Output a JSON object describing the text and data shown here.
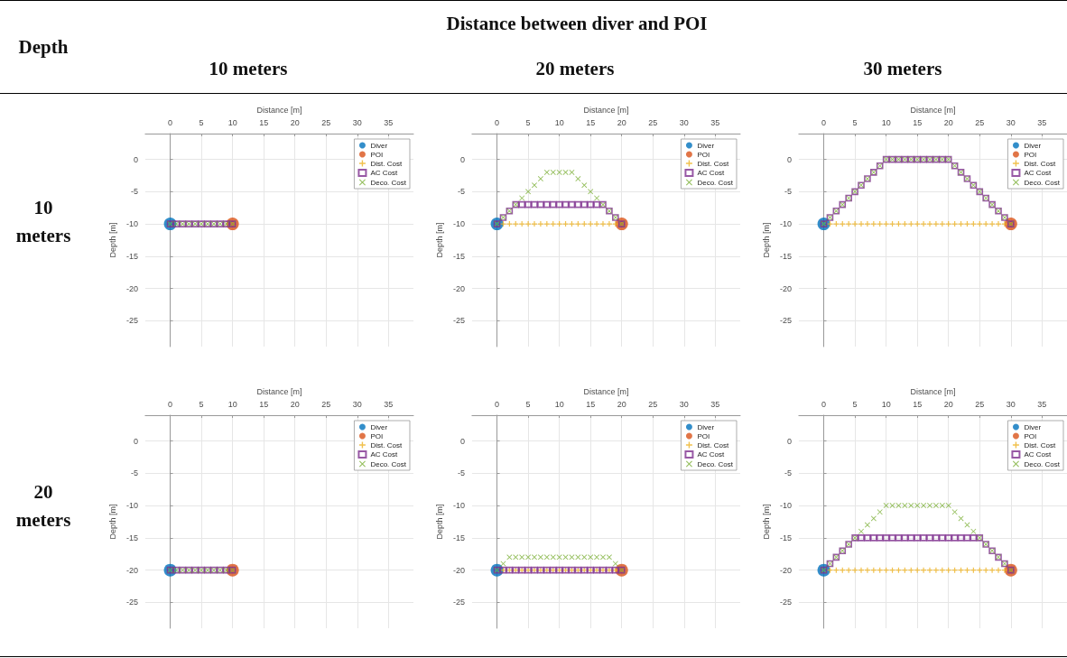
{
  "chart_data": [
    {
      "type": "other",
      "annotations": [
        "Depth",
        "Distance between diver and POI",
        "10 meters",
        "20 meters",
        "30 meters",
        "10 meters",
        "20 meters"
      ]
    },
    {
      "type": "scatter",
      "xlabel": "Distance [m]",
      "ylabel": "Depth [m]",
      "xlim": [
        -4,
        39
      ],
      "ylim": [
        -29,
        4
      ],
      "xticks": [
        0,
        5,
        10,
        15,
        20,
        25,
        30,
        35
      ],
      "yticks": [
        -25,
        -20,
        -15,
        -10,
        -5,
        0
      ],
      "grid": true,
      "legend": "top right",
      "series": [
        {
          "name": "Diver",
          "color": "#0072bd",
          "marker": "circle",
          "x": [
            0
          ],
          "values": [
            -10
          ]
        },
        {
          "name": "POI",
          "color": "#d95319",
          "marker": "circle",
          "x": [
            10
          ],
          "values": [
            -10
          ]
        },
        {
          "name": "Dist. Cost",
          "color": "#edb120",
          "marker": "plus"
        },
        {
          "name": "AC Cost",
          "color": "#7e2f8e",
          "marker": "square",
          "x": [
            0,
            1,
            2,
            3,
            4,
            5,
            6,
            7,
            8,
            9,
            10
          ],
          "values": [
            -10,
            -10,
            -10,
            -10,
            -10,
            -10,
            -10,
            -10,
            -10,
            -10,
            -10
          ]
        },
        {
          "name": "Deco. Cost",
          "color": "#77ac30",
          "marker": "cross",
          "x": [
            0,
            1,
            2,
            3,
            4,
            5,
            6,
            7,
            8,
            9,
            10
          ],
          "values": [
            -10,
            -10,
            -10,
            -10,
            -10,
            -10,
            -10,
            -10,
            -10,
            -10,
            -10
          ]
        }
      ]
    },
    {
      "type": "scatter",
      "xlabel": "Distance [m]",
      "ylabel": "Depth [m]",
      "xlim": [
        -4,
        39
      ],
      "ylim": [
        -29,
        4
      ],
      "xticks": [
        0,
        5,
        10,
        15,
        20,
        25,
        30,
        35
      ],
      "yticks": [
        -25,
        -20,
        -15,
        -10,
        -5,
        0
      ],
      "grid": true,
      "legend": "top right",
      "series": [
        {
          "name": "Diver",
          "color": "#0072bd",
          "marker": "circle",
          "x": [
            0
          ],
          "values": [
            -10
          ]
        },
        {
          "name": "POI",
          "color": "#d95319",
          "marker": "circle",
          "x": [
            20
          ],
          "values": [
            -10
          ]
        },
        {
          "name": "Dist. Cost",
          "color": "#edb120",
          "marker": "plus",
          "x": [
            1,
            2,
            3,
            4,
            5,
            6,
            7,
            8,
            9,
            10,
            11,
            12,
            13,
            14,
            15,
            16,
            17,
            18,
            19
          ],
          "values": [
            -10,
            -10,
            -10,
            -10,
            -10,
            -10,
            -10,
            -10,
            -10,
            -10,
            -10,
            -10,
            -10,
            -10,
            -10,
            -10,
            -10,
            -10,
            -10
          ]
        },
        {
          "name": "AC Cost",
          "color": "#7e2f8e",
          "marker": "square",
          "x": [
            0,
            1,
            2,
            3,
            4,
            5,
            6,
            7,
            8,
            9,
            10,
            11,
            12,
            13,
            14,
            15,
            16,
            17,
            18,
            19,
            20
          ],
          "values": [
            -10,
            -9,
            -8,
            -7,
            -7,
            -7,
            -7,
            -7,
            -7,
            -7,
            -7,
            -7,
            -7,
            -7,
            -7,
            -7,
            -7,
            -7,
            -8,
            -9,
            -10
          ]
        },
        {
          "name": "Deco. Cost",
          "color": "#77ac30",
          "marker": "cross",
          "x": [
            0,
            1,
            2,
            3,
            4,
            5,
            6,
            7,
            8,
            9,
            10,
            11,
            12,
            13,
            14,
            15,
            16,
            17,
            18,
            19,
            20
          ],
          "values": [
            -10,
            -9,
            -8,
            -7,
            -6,
            -5,
            -4,
            -3,
            -2,
            -2,
            -2,
            -2,
            -2,
            -3,
            -4,
            -5,
            -6,
            -7,
            -8,
            -9,
            -10
          ]
        }
      ]
    },
    {
      "type": "scatter",
      "xlabel": "Distance [m]",
      "ylabel": "Depth [m]",
      "xlim": [
        -4,
        39
      ],
      "ylim": [
        -29,
        4
      ],
      "xticks": [
        0,
        5,
        10,
        15,
        20,
        25,
        30,
        35
      ],
      "yticks": [
        -25,
        -20,
        -15,
        -10,
        -5,
        0
      ],
      "grid": true,
      "legend": "top right",
      "series": [
        {
          "name": "Diver",
          "color": "#0072bd",
          "marker": "circle",
          "x": [
            0
          ],
          "values": [
            -10
          ]
        },
        {
          "name": "POI",
          "color": "#d95319",
          "marker": "circle",
          "x": [
            30
          ],
          "values": [
            -10
          ]
        },
        {
          "name": "Dist. Cost",
          "color": "#edb120",
          "marker": "plus",
          "x": [
            1,
            2,
            3,
            4,
            5,
            6,
            7,
            8,
            9,
            10,
            11,
            12,
            13,
            14,
            15,
            16,
            17,
            18,
            19,
            20,
            21,
            22,
            23,
            24,
            25,
            26,
            27,
            28,
            29
          ],
          "values": [
            -10,
            -10,
            -10,
            -10,
            -10,
            -10,
            -10,
            -10,
            -10,
            -10,
            -10,
            -10,
            -10,
            -10,
            -10,
            -10,
            -10,
            -10,
            -10,
            -10,
            -10,
            -10,
            -10,
            -10,
            -10,
            -10,
            -10,
            -10,
            -10
          ]
        },
        {
          "name": "AC Cost",
          "color": "#7e2f8e",
          "marker": "square",
          "x": [
            0,
            1,
            2,
            3,
            4,
            5,
            6,
            7,
            8,
            9,
            10,
            11,
            12,
            13,
            14,
            15,
            16,
            17,
            18,
            19,
            20,
            21,
            22,
            23,
            24,
            25,
            26,
            27,
            28,
            29,
            30
          ],
          "values": [
            -10,
            -9,
            -8,
            -7,
            -6,
            -5,
            -4,
            -3,
            -2,
            -1,
            0,
            0,
            0,
            0,
            0,
            0,
            0,
            0,
            0,
            0,
            0,
            -1,
            -2,
            -3,
            -4,
            -5,
            -6,
            -7,
            -8,
            -9,
            -10
          ]
        },
        {
          "name": "Deco. Cost",
          "color": "#77ac30",
          "marker": "cross",
          "x": [
            0,
            1,
            2,
            3,
            4,
            5,
            6,
            7,
            8,
            9,
            10,
            11,
            12,
            13,
            14,
            15,
            16,
            17,
            18,
            19,
            20,
            21,
            22,
            23,
            24,
            25,
            26,
            27,
            28,
            29,
            30
          ],
          "values": [
            -10,
            -9,
            -8,
            -7,
            -6,
            -5,
            -4,
            -3,
            -2,
            -1,
            0,
            0,
            0,
            0,
            0,
            0,
            0,
            0,
            0,
            0,
            0,
            -1,
            -2,
            -3,
            -4,
            -5,
            -6,
            -7,
            -8,
            -9,
            -10
          ]
        }
      ]
    },
    {
      "type": "scatter",
      "xlabel": "Distance [m]",
      "ylabel": "Depth [m]",
      "xlim": [
        -4,
        39
      ],
      "ylim": [
        -29,
        4
      ],
      "xticks": [
        0,
        5,
        10,
        15,
        20,
        25,
        30,
        35
      ],
      "yticks": [
        -25,
        -20,
        -15,
        -10,
        -5,
        0
      ],
      "grid": true,
      "legend": "top right",
      "series": [
        {
          "name": "Diver",
          "color": "#0072bd",
          "marker": "circle",
          "x": [
            0
          ],
          "values": [
            -20
          ]
        },
        {
          "name": "POI",
          "color": "#d95319",
          "marker": "circle",
          "x": [
            10
          ],
          "values": [
            -20
          ]
        },
        {
          "name": "Dist. Cost",
          "color": "#edb120",
          "marker": "plus"
        },
        {
          "name": "AC Cost",
          "color": "#7e2f8e",
          "marker": "square",
          "x": [
            0,
            1,
            2,
            3,
            4,
            5,
            6,
            7,
            8,
            9,
            10
          ],
          "values": [
            -20,
            -20,
            -20,
            -20,
            -20,
            -20,
            -20,
            -20,
            -20,
            -20,
            -20
          ]
        },
        {
          "name": "Deco. Cost",
          "color": "#77ac30",
          "marker": "cross",
          "x": [
            0,
            1,
            2,
            3,
            4,
            5,
            6,
            7,
            8,
            9,
            10
          ],
          "values": [
            -20,
            -20,
            -20,
            -20,
            -20,
            -20,
            -20,
            -20,
            -20,
            -20,
            -20
          ]
        }
      ]
    },
    {
      "type": "scatter",
      "xlabel": "Distance [m]",
      "ylabel": "Depth [m]",
      "xlim": [
        -4,
        39
      ],
      "ylim": [
        -29,
        4
      ],
      "xticks": [
        0,
        5,
        10,
        15,
        20,
        25,
        30,
        35
      ],
      "yticks": [
        -25,
        -20,
        -15,
        -10,
        -5,
        0
      ],
      "grid": true,
      "legend": "top right",
      "series": [
        {
          "name": "Diver",
          "color": "#0072bd",
          "marker": "circle",
          "x": [
            0
          ],
          "values": [
            -20
          ]
        },
        {
          "name": "POI",
          "color": "#d95319",
          "marker": "circle",
          "x": [
            20
          ],
          "values": [
            -20
          ]
        },
        {
          "name": "Dist. Cost",
          "color": "#edb120",
          "marker": "plus",
          "x": [
            1,
            2,
            3,
            4,
            5,
            6,
            7,
            8,
            9,
            10,
            11,
            12,
            13,
            14,
            15,
            16,
            17,
            18,
            19
          ],
          "values": [
            -20,
            -20,
            -20,
            -20,
            -20,
            -20,
            -20,
            -20,
            -20,
            -20,
            -20,
            -20,
            -20,
            -20,
            -20,
            -20,
            -20,
            -20,
            -20
          ]
        },
        {
          "name": "AC Cost",
          "color": "#7e2f8e",
          "marker": "square",
          "x": [
            0,
            1,
            2,
            3,
            4,
            5,
            6,
            7,
            8,
            9,
            10,
            11,
            12,
            13,
            14,
            15,
            16,
            17,
            18,
            19,
            20
          ],
          "values": [
            -20,
            -20,
            -20,
            -20,
            -20,
            -20,
            -20,
            -20,
            -20,
            -20,
            -20,
            -20,
            -20,
            -20,
            -20,
            -20,
            -20,
            -20,
            -20,
            -20,
            -20
          ]
        },
        {
          "name": "Deco. Cost",
          "color": "#77ac30",
          "marker": "cross",
          "x": [
            0,
            1,
            2,
            3,
            4,
            5,
            6,
            7,
            8,
            9,
            10,
            11,
            12,
            13,
            14,
            15,
            16,
            17,
            18,
            19,
            20
          ],
          "values": [
            -20,
            -19,
            -18,
            -18,
            -18,
            -18,
            -18,
            -18,
            -18,
            -18,
            -18,
            -18,
            -18,
            -18,
            -18,
            -18,
            -18,
            -18,
            -18,
            -19,
            -20
          ]
        }
      ]
    },
    {
      "type": "scatter",
      "xlabel": "Distance [m]",
      "ylabel": "Depth [m]",
      "xlim": [
        -4,
        39
      ],
      "ylim": [
        -29,
        4
      ],
      "xticks": [
        0,
        5,
        10,
        15,
        20,
        25,
        30,
        35
      ],
      "yticks": [
        -25,
        -20,
        -15,
        -10,
        -5,
        0
      ],
      "grid": true,
      "legend": "top right",
      "series": [
        {
          "name": "Diver",
          "color": "#0072bd",
          "marker": "circle",
          "x": [
            0
          ],
          "values": [
            -20
          ]
        },
        {
          "name": "POI",
          "color": "#d95319",
          "marker": "circle",
          "x": [
            30
          ],
          "values": [
            -20
          ]
        },
        {
          "name": "Dist. Cost",
          "color": "#edb120",
          "marker": "plus",
          "x": [
            1,
            2,
            3,
            4,
            5,
            6,
            7,
            8,
            9,
            10,
            11,
            12,
            13,
            14,
            15,
            16,
            17,
            18,
            19,
            20,
            21,
            22,
            23,
            24,
            25,
            26,
            27,
            28,
            29
          ],
          "values": [
            -20,
            -20,
            -20,
            -20,
            -20,
            -20,
            -20,
            -20,
            -20,
            -20,
            -20,
            -20,
            -20,
            -20,
            -20,
            -20,
            -20,
            -20,
            -20,
            -20,
            -20,
            -20,
            -20,
            -20,
            -20,
            -20,
            -20,
            -20,
            -20
          ]
        },
        {
          "name": "AC Cost",
          "color": "#7e2f8e",
          "marker": "square",
          "x": [
            0,
            1,
            2,
            3,
            4,
            5,
            6,
            7,
            8,
            9,
            10,
            11,
            12,
            13,
            14,
            15,
            16,
            17,
            18,
            19,
            20,
            21,
            22,
            23,
            24,
            25,
            26,
            27,
            28,
            29,
            30
          ],
          "values": [
            -20,
            -19,
            -18,
            -17,
            -16,
            -15,
            -15,
            -15,
            -15,
            -15,
            -15,
            -15,
            -15,
            -15,
            -15,
            -15,
            -15,
            -15,
            -15,
            -15,
            -15,
            -15,
            -15,
            -15,
            -15,
            -15,
            -16,
            -17,
            -18,
            -19,
            -20
          ]
        },
        {
          "name": "Deco. Cost",
          "color": "#77ac30",
          "marker": "cross",
          "x": [
            0,
            1,
            2,
            3,
            4,
            5,
            6,
            7,
            8,
            9,
            10,
            11,
            12,
            13,
            14,
            15,
            16,
            17,
            18,
            19,
            20,
            21,
            22,
            23,
            24,
            25,
            26,
            27,
            28,
            29,
            30
          ],
          "values": [
            -20,
            -19,
            -18,
            -17,
            -16,
            -15,
            -14,
            -13,
            -12,
            -11,
            -10,
            -10,
            -10,
            -10,
            -10,
            -10,
            -10,
            -10,
            -10,
            -10,
            -10,
            -11,
            -12,
            -13,
            -14,
            -15,
            -16,
            -17,
            -18,
            -19,
            -20
          ]
        }
      ]
    }
  ]
}
